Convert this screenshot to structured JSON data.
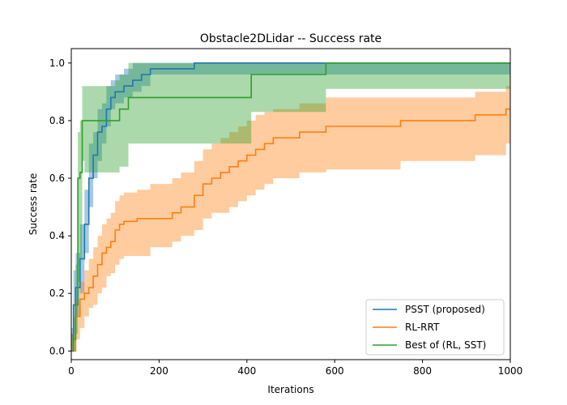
{
  "chart_data": {
    "type": "line",
    "title": "Obstacle2DLidar -- Success rate",
    "xlabel": "Iterations",
    "ylabel": "Success rate",
    "xlim": [
      0,
      1000
    ],
    "ylim": [
      -0.03,
      1.05
    ],
    "xticks": [
      0,
      200,
      400,
      600,
      800,
      1000
    ],
    "xtick_labels": [
      "0",
      "200",
      "400",
      "600",
      "800",
      "1000"
    ],
    "yticks": [
      0.0,
      0.2,
      0.4,
      0.6,
      0.8,
      1.0
    ],
    "ytick_labels": [
      "0.0",
      "0.2",
      "0.4",
      "0.6",
      "0.8",
      "1.0"
    ],
    "grid": false,
    "legend_position": "lower-right",
    "series": [
      {
        "name": "PSST (proposed)",
        "color": "#1f77b4",
        "x": [
          0,
          5,
          10,
          20,
          30,
          40,
          50,
          60,
          70,
          80,
          90,
          100,
          120,
          140,
          160,
          180,
          230,
          280,
          400,
          600,
          800,
          1000
        ],
        "y": [
          0.0,
          0.16,
          0.22,
          0.32,
          0.44,
          0.6,
          0.68,
          0.76,
          0.78,
          0.84,
          0.88,
          0.9,
          0.92,
          0.94,
          0.96,
          0.98,
          0.98,
          1.0,
          1.0,
          1.0,
          1.0,
          1.0
        ],
        "band_lower": [
          0.0,
          0.06,
          0.12,
          0.2,
          0.34,
          0.5,
          0.6,
          0.66,
          0.72,
          0.78,
          0.84,
          0.86,
          0.88,
          0.9,
          0.92,
          0.96,
          0.96,
          0.96,
          0.96,
          0.96,
          0.96,
          0.96
        ],
        "band_upper": [
          0.08,
          0.28,
          0.34,
          0.44,
          0.56,
          0.72,
          0.76,
          0.84,
          0.86,
          0.92,
          0.94,
          0.96,
          0.98,
          1.0,
          1.0,
          1.0,
          1.0,
          1.0,
          1.0,
          1.0,
          1.0,
          1.0
        ]
      },
      {
        "name": "RL-RRT",
        "color": "#ff7f0e",
        "x": [
          0,
          10,
          20,
          30,
          40,
          50,
          60,
          70,
          80,
          90,
          100,
          110,
          120,
          150,
          180,
          230,
          250,
          280,
          300,
          320,
          340,
          360,
          380,
          400,
          420,
          440,
          460,
          480,
          520,
          580,
          750,
          920,
          990,
          1000
        ],
        "y": [
          0.0,
          0.12,
          0.18,
          0.2,
          0.22,
          0.26,
          0.3,
          0.34,
          0.36,
          0.38,
          0.42,
          0.44,
          0.45,
          0.46,
          0.46,
          0.48,
          0.5,
          0.54,
          0.58,
          0.6,
          0.62,
          0.64,
          0.66,
          0.68,
          0.7,
          0.72,
          0.74,
          0.74,
          0.76,
          0.78,
          0.8,
          0.82,
          0.84,
          0.84
        ],
        "band_lower": [
          0.0,
          0.04,
          0.08,
          0.12,
          0.15,
          0.16,
          0.2,
          0.22,
          0.26,
          0.27,
          0.3,
          0.32,
          0.33,
          0.33,
          0.36,
          0.38,
          0.4,
          0.42,
          0.46,
          0.48,
          0.48,
          0.5,
          0.52,
          0.54,
          0.56,
          0.58,
          0.6,
          0.6,
          0.62,
          0.63,
          0.66,
          0.68,
          0.72,
          0.72
        ],
        "band_upper": [
          0.06,
          0.18,
          0.24,
          0.28,
          0.32,
          0.36,
          0.4,
          0.44,
          0.46,
          0.48,
          0.52,
          0.54,
          0.55,
          0.56,
          0.58,
          0.6,
          0.62,
          0.66,
          0.7,
          0.72,
          0.74,
          0.76,
          0.78,
          0.8,
          0.82,
          0.83,
          0.84,
          0.84,
          0.86,
          0.88,
          0.88,
          0.9,
          0.92,
          0.92
        ]
      },
      {
        "name": "Best of (RL, SST)",
        "color": "#2ca02c",
        "x": [
          0,
          5,
          10,
          15,
          20,
          25,
          30,
          100,
          110,
          130,
          230,
          410,
          580,
          1000
        ],
        "y": [
          0.0,
          0.04,
          0.16,
          0.6,
          0.62,
          0.8,
          0.8,
          0.8,
          0.84,
          0.88,
          0.88,
          0.96,
          1.0,
          1.0
        ],
        "band_lower": [
          0.0,
          0.0,
          0.06,
          0.24,
          0.32,
          0.66,
          0.62,
          0.62,
          0.64,
          0.72,
          0.72,
          0.83,
          0.91,
          0.91
        ],
        "band_upper": [
          0.06,
          0.12,
          0.3,
          0.76,
          0.8,
          0.92,
          0.92,
          0.94,
          0.96,
          1.0,
          1.0,
          1.0,
          1.0,
          1.0
        ]
      }
    ]
  }
}
